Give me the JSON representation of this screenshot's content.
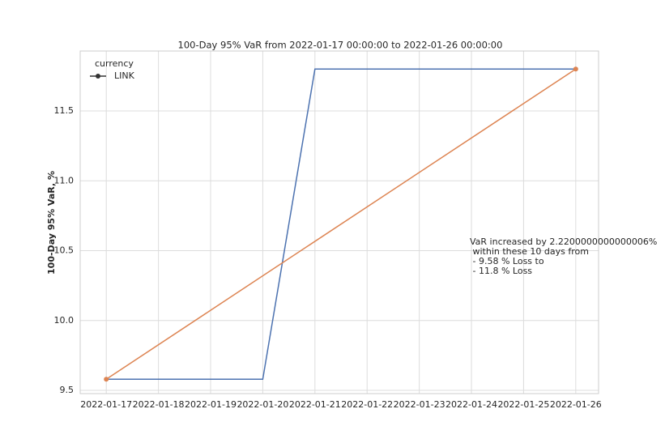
{
  "chart_data": {
    "type": "line",
    "title": "100-Day 95% VaR from 2022-01-17 00:00:00 to 2022-01-26 00:00:00",
    "ylabel": "100-Day 95% VaR, %",
    "legend_title": "currency",
    "legend_loc": "upper left",
    "grid": true,
    "series": [
      {
        "name": "LINK",
        "color": "#4c72b0",
        "x": [
          "2022-01-17",
          "2022-01-18",
          "2022-01-19",
          "2022-01-20",
          "2022-01-21",
          "2022-01-22",
          "2022-01-23",
          "2022-01-24",
          "2022-01-25",
          "2022-01-26"
        ],
        "values": [
          9.58,
          9.58,
          9.58,
          9.58,
          11.8,
          11.8,
          11.8,
          11.8,
          11.8,
          11.8
        ]
      },
      {
        "color": "#dd8452",
        "markers": true,
        "x": [
          "2022-01-17",
          "2022-01-26"
        ],
        "values": [
          9.58,
          11.8
        ]
      }
    ],
    "xlim": [
      "2022-01-16 12:00",
      "2022-01-26 10:30"
    ],
    "xticks": [
      "2022-01-17",
      "2022-01-18",
      "2022-01-19",
      "2022-01-20",
      "2022-01-21",
      "2022-01-22",
      "2022-01-23",
      "2022-01-24",
      "2022-01-25",
      "2022-01-26"
    ],
    "ylim": [
      9.477,
      11.929
    ],
    "yticks": [
      9.5,
      {
        "value": 10,
        "label": "10.0"
      },
      10.5,
      {
        "value": 11,
        "label": "11.0"
      },
      11.5
    ],
    "annotation": [
      "VaR increased by 2.2200000000000006%",
      " within these 10 days from",
      " - 9.58 % Loss to",
      " - 11.8 % Loss"
    ]
  }
}
